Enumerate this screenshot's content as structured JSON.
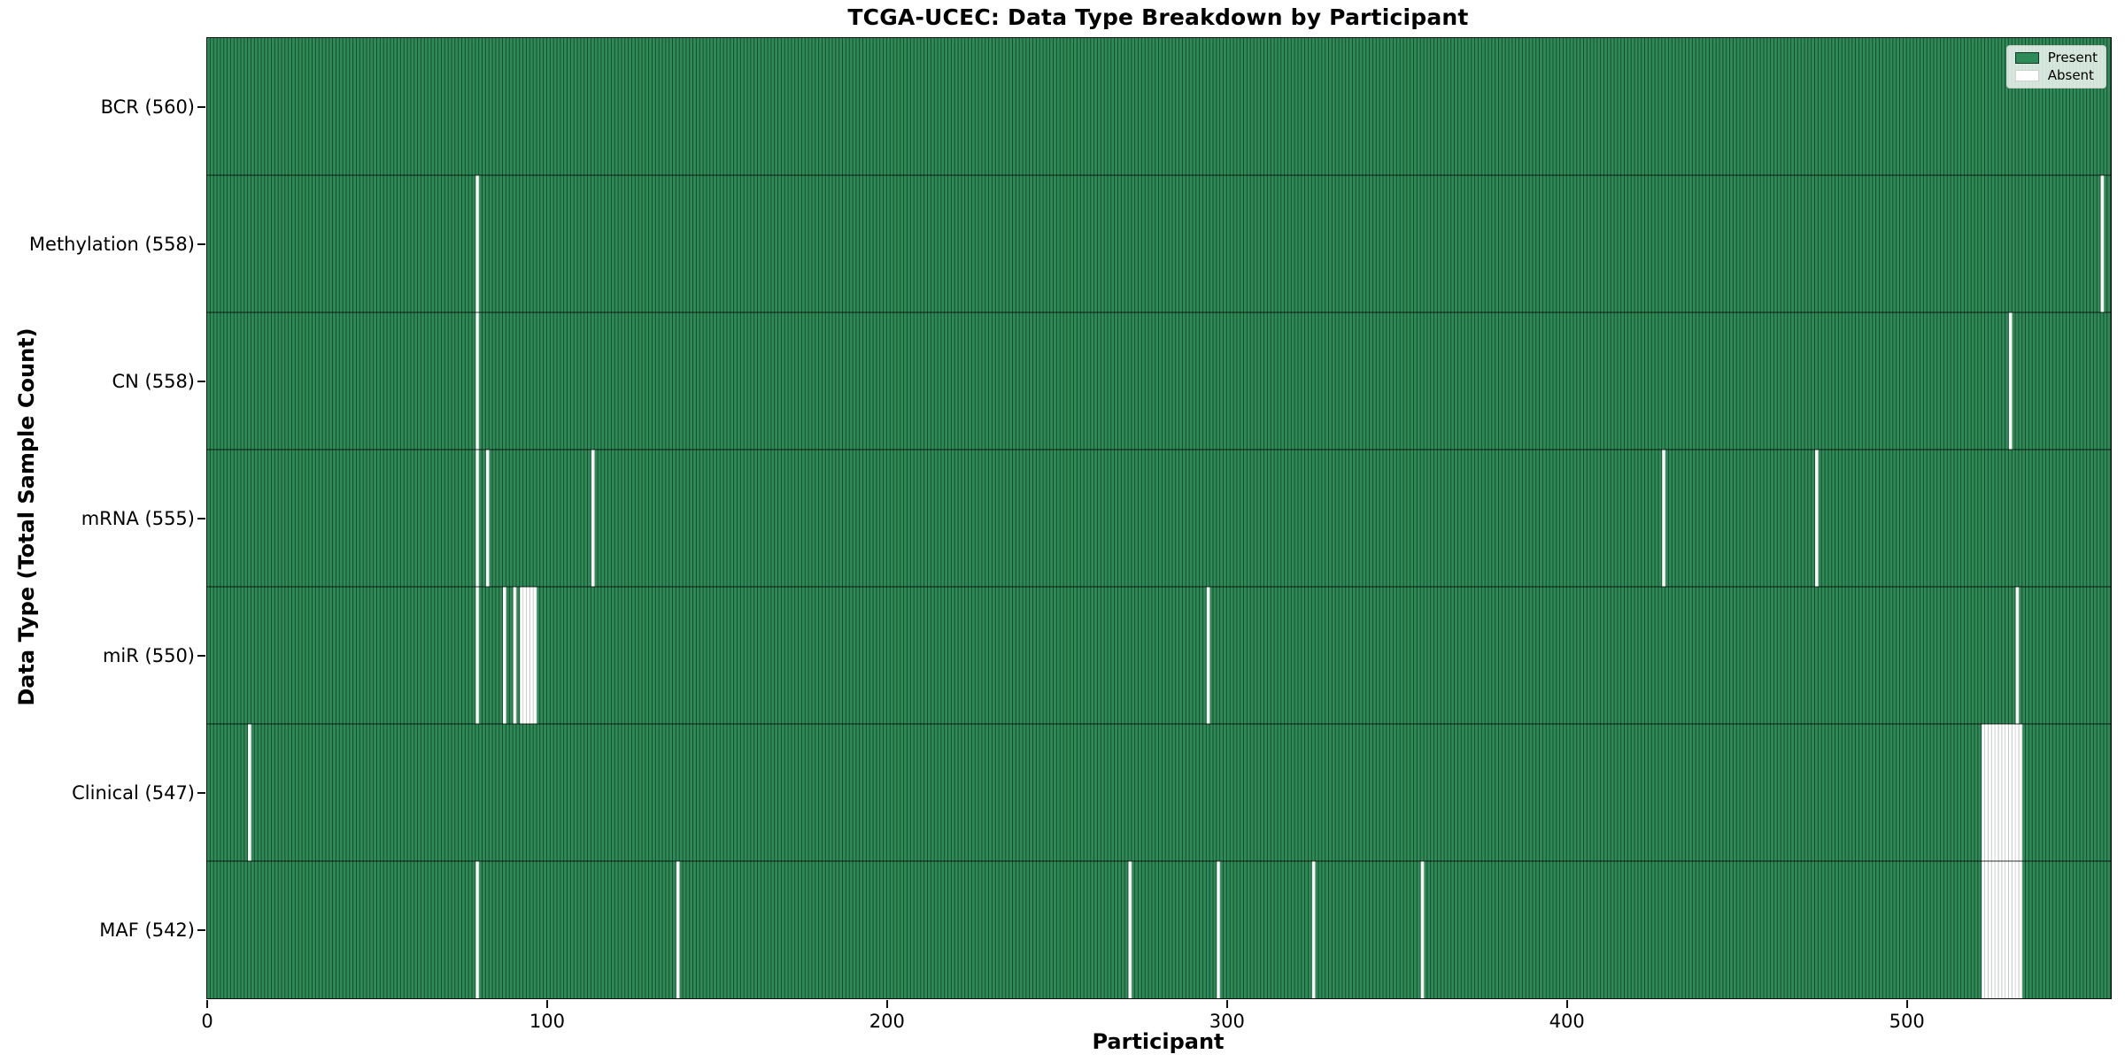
{
  "title": "TCGA-UCEC: Data Type Breakdown by Participant",
  "legend": {
    "items": [
      {
        "label": "Present",
        "color": "#2e8b57"
      },
      {
        "label": "Absent",
        "color": "#ffffff"
      }
    ]
  },
  "chart_data": {
    "type": "heatmap",
    "title": "TCGA-UCEC: Data Type Breakdown by Participant",
    "xlabel": "Participant",
    "ylabel": "Data Type (Total Sample Count)",
    "x_range": [
      0,
      560
    ],
    "x_ticks": [
      0,
      100,
      200,
      300,
      400,
      500
    ],
    "n_participants": 560,
    "present_color": "#2e8b57",
    "absent_color": "#ffffff",
    "grid": false,
    "legend": [
      "Present",
      "Absent"
    ],
    "legend_position": "upper right",
    "rows": [
      {
        "label": "BCR (560)",
        "data_type": "BCR",
        "total": 560,
        "absent_participants": []
      },
      {
        "label": "Methylation (558)",
        "data_type": "Methylation",
        "total": 558,
        "absent_participants": [
          79,
          557
        ]
      },
      {
        "label": "CN (558)",
        "data_type": "CN",
        "total": 558,
        "absent_participants": [
          79,
          530
        ]
      },
      {
        "label": "mRNA (555)",
        "data_type": "mRNA",
        "total": 555,
        "absent_participants": [
          79,
          82,
          113,
          428,
          473
        ]
      },
      {
        "label": "miR (550)",
        "data_type": "miR",
        "total": 550,
        "absent_participants": [
          79,
          87,
          90,
          92,
          93,
          94,
          95,
          96,
          294,
          532
        ]
      },
      {
        "label": "Clinical (547)",
        "data_type": "Clinical",
        "total": 547,
        "absent_participants": [
          12,
          522,
          523,
          524,
          525,
          526,
          527,
          528,
          529,
          530,
          531,
          532,
          533
        ]
      },
      {
        "label": "MAF (542)",
        "data_type": "MAF",
        "total": 542,
        "absent_participants": [
          79,
          138,
          271,
          297,
          325,
          357,
          522,
          523,
          524,
          525,
          526,
          527,
          528,
          529,
          530,
          531,
          532,
          533
        ]
      }
    ]
  }
}
